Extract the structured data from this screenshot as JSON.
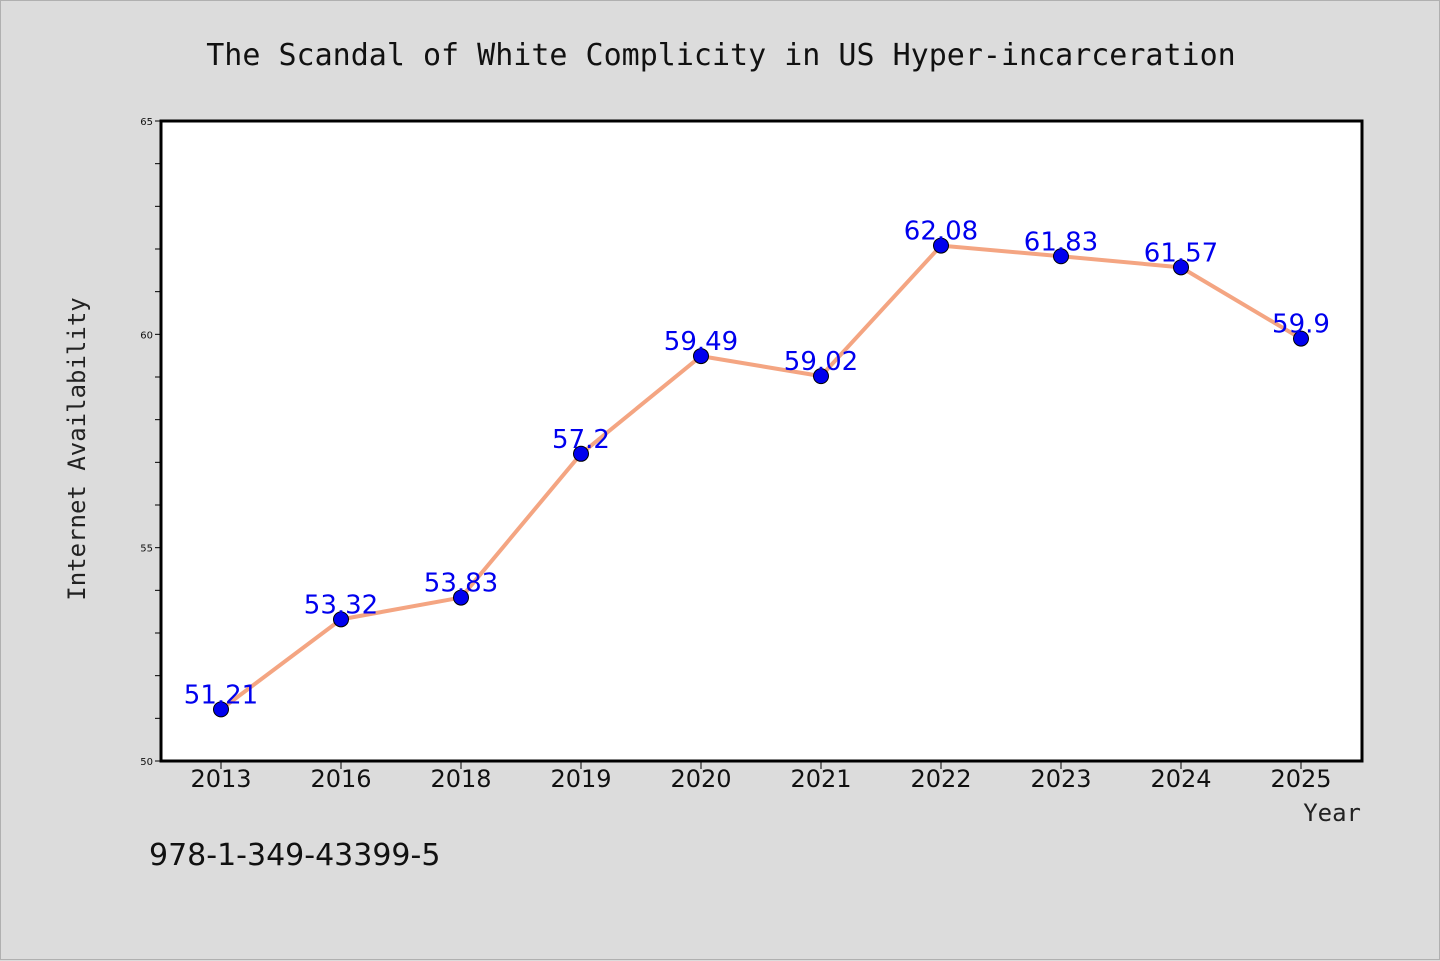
{
  "chart_data": {
    "type": "line",
    "title": "The Scandal of White Complicity in US Hyper-incarceration",
    "xlabel": "Year",
    "ylabel": "Internet Availability",
    "categories": [
      "2013",
      "2016",
      "2018",
      "2019",
      "2020",
      "2021",
      "2022",
      "2023",
      "2024",
      "2025"
    ],
    "values": [
      51.21,
      53.32,
      53.83,
      57.2,
      59.49,
      59.02,
      62.08,
      61.83,
      61.57,
      59.9
    ],
    "value_labels": [
      "51.21",
      "53.32",
      "53.83",
      "57.2",
      "59.49",
      "59.02",
      "62.08",
      "61.83",
      "61.57",
      "59.9"
    ],
    "ylim": [
      50,
      65
    ],
    "yticks": [
      "50",
      "55",
      "60",
      "65"
    ],
    "grid": false,
    "colors": {
      "line": "#f4a582",
      "marker": "#0000ee",
      "label": "#0000ee",
      "plot_bg": "#ffffff",
      "page_bg": "#dcdcdc"
    }
  },
  "footer": {
    "isbn": "978-1-349-43399-5"
  }
}
